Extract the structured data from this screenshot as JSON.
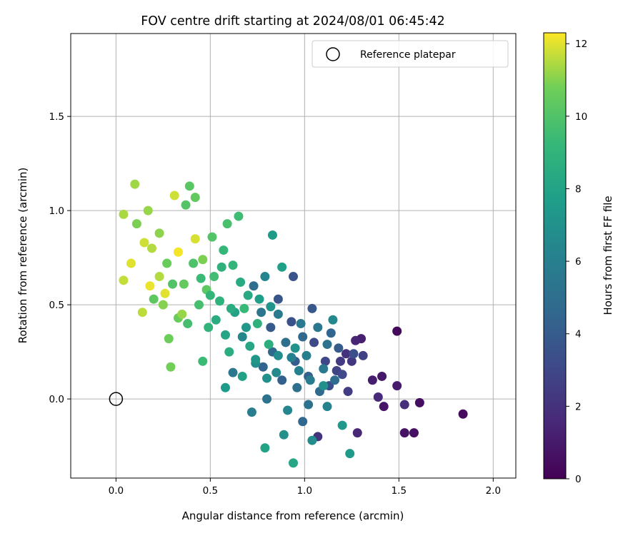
{
  "chart_data": {
    "type": "scatter",
    "title": "FOV centre drift starting at 2024/08/01 06:45:42",
    "xlabel": "Angular distance from reference (arcmin)",
    "ylabel": "Rotation from reference (arcmin)",
    "xlim": [
      -0.24,
      2.12
    ],
    "ylim": [
      -0.42,
      1.94
    ],
    "xticks": [
      0.0,
      0.5,
      1.0,
      1.5,
      2.0
    ],
    "xtick_labels": [
      "0.0",
      "0.5",
      "1.0",
      "1.5",
      "2.0"
    ],
    "yticks": [
      0.0,
      0.5,
      1.0,
      1.5
    ],
    "ytick_labels": [
      "0.0",
      "0.5",
      "1.0",
      "1.5"
    ],
    "grid": true,
    "legend": {
      "placement": "top-right",
      "entries": [
        {
          "label": "Reference platepar",
          "marker": "open-circle",
          "x": 0.0,
          "y": 0.0
        }
      ]
    },
    "colorbar": {
      "label": "Hours from first FF file",
      "min": 0,
      "max": 12.3,
      "ticks": [
        0,
        2,
        4,
        6,
        8,
        10,
        12
      ],
      "tick_labels": [
        "0",
        "2",
        "4",
        "6",
        "8",
        "10",
        "12"
      ],
      "colormap": "viridis"
    },
    "points": [
      [
        1.49,
        0.36,
        0.3
      ],
      [
        1.84,
        -0.08,
        0.4
      ],
      [
        1.61,
        -0.02,
        0.5
      ],
      [
        1.58,
        -0.18,
        0.6
      ],
      [
        1.53,
        -0.18,
        0.7
      ],
      [
        1.42,
        -0.04,
        0.8
      ],
      [
        1.41,
        0.12,
        0.9
      ],
      [
        1.49,
        0.07,
        1.0
      ],
      [
        1.36,
        0.1,
        1.1
      ],
      [
        1.3,
        0.32,
        1.2
      ],
      [
        1.27,
        0.31,
        1.4
      ],
      [
        1.28,
        -0.18,
        1.5
      ],
      [
        1.39,
        0.01,
        1.7
      ],
      [
        1.53,
        -0.03,
        1.9
      ],
      [
        1.22,
        0.24,
        2.0
      ],
      [
        1.07,
        -0.2,
        2.1
      ],
      [
        1.25,
        0.2,
        2.3
      ],
      [
        1.19,
        0.2,
        2.4
      ],
      [
        1.23,
        0.04,
        2.5
      ],
      [
        1.31,
        0.23,
        2.7
      ],
      [
        1.17,
        0.15,
        2.8
      ],
      [
        1.11,
        0.2,
        3.0
      ],
      [
        1.2,
        0.13,
        3.1
      ],
      [
        1.05,
        0.3,
        3.2
      ],
      [
        1.13,
        0.07,
        3.3
      ],
      [
        1.26,
        0.24,
        3.4
      ],
      [
        0.93,
        0.41,
        3.5
      ],
      [
        0.94,
        0.65,
        3.6
      ],
      [
        0.86,
        0.53,
        3.7
      ],
      [
        1.04,
        0.48,
        3.8
      ],
      [
        0.82,
        0.38,
        3.9
      ],
      [
        1.18,
        0.27,
        4.0
      ],
      [
        0.95,
        0.2,
        4.1
      ],
      [
        0.88,
        0.1,
        4.2
      ],
      [
        1.02,
        0.12,
        4.3
      ],
      [
        0.78,
        0.17,
        4.4
      ],
      [
        1.14,
        0.35,
        4.5
      ],
      [
        0.99,
        0.33,
        4.6
      ],
      [
        0.83,
        0.25,
        4.7
      ],
      [
        1.08,
        0.04,
        4.8
      ],
      [
        0.73,
        0.6,
        4.9
      ],
      [
        0.9,
        0.3,
        5.0
      ],
      [
        0.96,
        0.06,
        5.1
      ],
      [
        1.02,
        -0.03,
        5.2
      ],
      [
        0.8,
        0.0,
        5.3
      ],
      [
        0.77,
        0.46,
        5.4
      ],
      [
        0.62,
        0.14,
        5.5
      ],
      [
        1.1,
        0.16,
        5.6
      ],
      [
        0.98,
        0.4,
        5.7
      ],
      [
        0.86,
        0.45,
        5.8
      ],
      [
        0.72,
        -0.07,
        5.9
      ],
      [
        1.01,
        0.23,
        6.0
      ],
      [
        0.93,
        0.22,
        6.1
      ],
      [
        1.12,
        -0.04,
        6.2
      ],
      [
        0.79,
        0.65,
        6.3
      ],
      [
        0.67,
        0.33,
        6.4
      ],
      [
        1.15,
        0.42,
        6.5
      ],
      [
        0.85,
        0.14,
        6.6
      ],
      [
        1.04,
        -0.22,
        6.7
      ],
      [
        0.74,
        0.19,
        6.8
      ],
      [
        0.89,
        -0.19,
        6.9
      ],
      [
        1.1,
        0.07,
        7.0
      ],
      [
        0.95,
        0.27,
        7.1
      ],
      [
        0.82,
        0.49,
        7.2
      ],
      [
        0.69,
        0.38,
        7.3
      ],
      [
        1.2,
        -0.14,
        7.4
      ],
      [
        1.24,
        -0.29,
        7.5
      ],
      [
        0.83,
        0.87,
        7.6
      ],
      [
        0.76,
        0.53,
        7.7
      ],
      [
        0.88,
        0.7,
        7.8
      ],
      [
        0.63,
        0.46,
        7.9
      ],
      [
        0.79,
        -0.26,
        8.0
      ],
      [
        0.58,
        0.34,
        8.1
      ],
      [
        0.94,
        -0.34,
        8.2
      ],
      [
        0.7,
        0.55,
        8.3
      ],
      [
        0.66,
        0.62,
        8.4
      ],
      [
        0.53,
        0.42,
        8.5
      ],
      [
        0.6,
        0.25,
        8.6
      ],
      [
        0.81,
        0.29,
        8.7
      ],
      [
        0.75,
        0.4,
        8.8
      ],
      [
        0.55,
        0.52,
        8.9
      ],
      [
        0.49,
        0.38,
        9.0
      ],
      [
        0.62,
        0.71,
        9.1
      ],
      [
        0.57,
        0.79,
        9.2
      ],
      [
        0.68,
        0.48,
        9.3
      ],
      [
        0.46,
        0.2,
        9.4
      ],
      [
        0.65,
        0.97,
        9.5
      ],
      [
        0.52,
        0.65,
        9.6
      ],
      [
        0.44,
        0.5,
        9.7
      ],
      [
        0.59,
        0.93,
        9.8
      ],
      [
        0.41,
        0.72,
        9.9
      ],
      [
        0.51,
        0.86,
        10.0
      ],
      [
        0.37,
        1.03,
        10.1
      ],
      [
        0.39,
        1.13,
        10.2
      ],
      [
        0.48,
        0.58,
        10.3
      ],
      [
        0.42,
        1.07,
        10.4
      ],
      [
        0.36,
        0.61,
        10.5
      ],
      [
        0.33,
        0.43,
        10.6
      ],
      [
        0.28,
        0.32,
        10.7
      ],
      [
        0.29,
        0.17,
        10.8
      ],
      [
        0.46,
        0.74,
        10.9
      ],
      [
        0.25,
        0.5,
        11.0
      ],
      [
        0.23,
        0.88,
        11.1
      ],
      [
        0.17,
        1.0,
        11.2
      ],
      [
        0.1,
        1.14,
        11.3
      ],
      [
        0.04,
        0.98,
        11.4
      ],
      [
        0.19,
        0.8,
        11.5
      ],
      [
        0.14,
        0.46,
        11.6
      ],
      [
        0.04,
        0.63,
        11.7
      ],
      [
        0.31,
        1.08,
        11.8
      ],
      [
        0.42,
        0.85,
        11.9
      ],
      [
        0.26,
        0.56,
        12.0
      ],
      [
        0.18,
        0.6,
        12.1
      ],
      [
        0.33,
        0.78,
        12.2
      ],
      [
        0.08,
        0.72,
        12.0
      ],
      [
        0.15,
        0.83,
        11.8
      ],
      [
        0.23,
        0.65,
        11.5
      ],
      [
        0.35,
        0.45,
        11.2
      ],
      [
        0.11,
        0.93,
        10.9
      ],
      [
        0.27,
        0.72,
        10.6
      ],
      [
        0.2,
        0.53,
        10.3
      ],
      [
        0.3,
        0.61,
        10.0
      ],
      [
        0.38,
        0.4,
        9.7
      ],
      [
        0.45,
        0.64,
        9.4
      ],
      [
        0.5,
        0.55,
        9.1
      ],
      [
        0.56,
        0.7,
        8.8
      ],
      [
        0.61,
        0.48,
        8.5
      ],
      [
        0.71,
        0.28,
        8.2
      ],
      [
        0.67,
        0.12,
        7.9
      ],
      [
        0.58,
        0.06,
        7.6
      ],
      [
        0.74,
        0.21,
        7.3
      ],
      [
        0.8,
        0.11,
        7.0
      ],
      [
        0.86,
        0.23,
        6.7
      ],
      [
        0.91,
        -0.06,
        6.4
      ],
      [
        0.97,
        0.15,
        6.1
      ],
      [
        1.03,
        0.1,
        5.8
      ],
      [
        1.07,
        0.38,
        5.5
      ],
      [
        1.12,
        0.29,
        5.2
      ],
      [
        1.16,
        0.1,
        4.9
      ],
      [
        0.99,
        -0.12,
        4.6
      ]
    ]
  }
}
